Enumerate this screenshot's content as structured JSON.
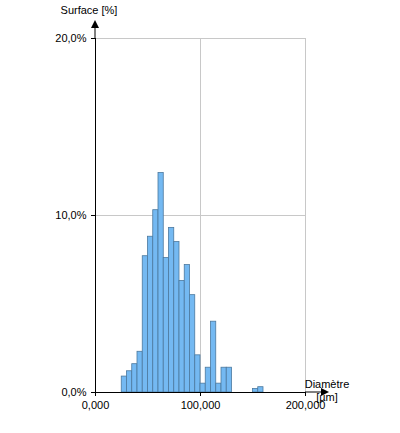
{
  "chart_data": {
    "type": "histogram",
    "xlabel": "Diamètre [µm]",
    "ylabel": "Surface [%]",
    "bins": [
      25,
      30,
      35,
      40,
      45,
      50,
      55,
      60,
      65,
      70,
      75,
      80,
      85,
      90,
      95,
      100,
      105,
      110,
      115,
      120,
      125,
      130,
      135,
      140,
      145,
      150,
      155,
      160
    ],
    "values": [
      0.9,
      1.2,
      1.6,
      2.3,
      7.7,
      8.8,
      10.3,
      12.4,
      7.6,
      9.3,
      8.5,
      6.3,
      7.2,
      5.5,
      2.1,
      0.5,
      1.4,
      4.0,
      0.5,
      1.4,
      1.4,
      0,
      0,
      0,
      0,
      0.2,
      0.3
    ],
    "color": "#74b9f2",
    "xlim": [
      0,
      200
    ],
    "xticks": [
      {
        "value": 0,
        "label": "0,000"
      },
      {
        "value": 100,
        "label": "100,000"
      },
      {
        "value": 200,
        "label": "200,000"
      }
    ],
    "ylim": [
      0,
      20
    ],
    "yticks": [
      {
        "value": 0,
        "label": "0,0%"
      },
      {
        "value": 10,
        "label": "10,0%"
      },
      {
        "value": 20,
        "label": "20,0%"
      }
    ],
    "grid": true
  }
}
